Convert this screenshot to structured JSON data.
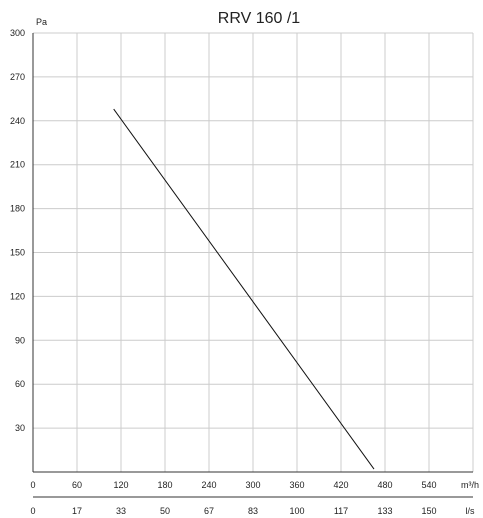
{
  "chart_data": {
    "type": "line",
    "title": "RRV 160 /1",
    "ylabel": "Pa",
    "x_unit_primary": "m³/h",
    "x_unit_secondary": "l/s",
    "xlim": [
      0,
      600
    ],
    "ylim": [
      0,
      300
    ],
    "x_ticks": [
      "0",
      "60",
      "120",
      "180",
      "240",
      "300",
      "360",
      "420",
      "480",
      "540"
    ],
    "x_ticks_secondary": [
      "0",
      "17",
      "33",
      "50",
      "67",
      "83",
      "100",
      "117",
      "133",
      "150"
    ],
    "y_ticks": [
      "30",
      "60",
      "90",
      "120",
      "150",
      "180",
      "210",
      "240",
      "270",
      "300"
    ],
    "grid": true,
    "series": [
      {
        "x": [
          110,
          465
        ],
        "y": [
          248,
          2
        ]
      }
    ],
    "colors": {
      "grid": "#cccccc",
      "axis": "#333333",
      "line": "#111111"
    }
  }
}
